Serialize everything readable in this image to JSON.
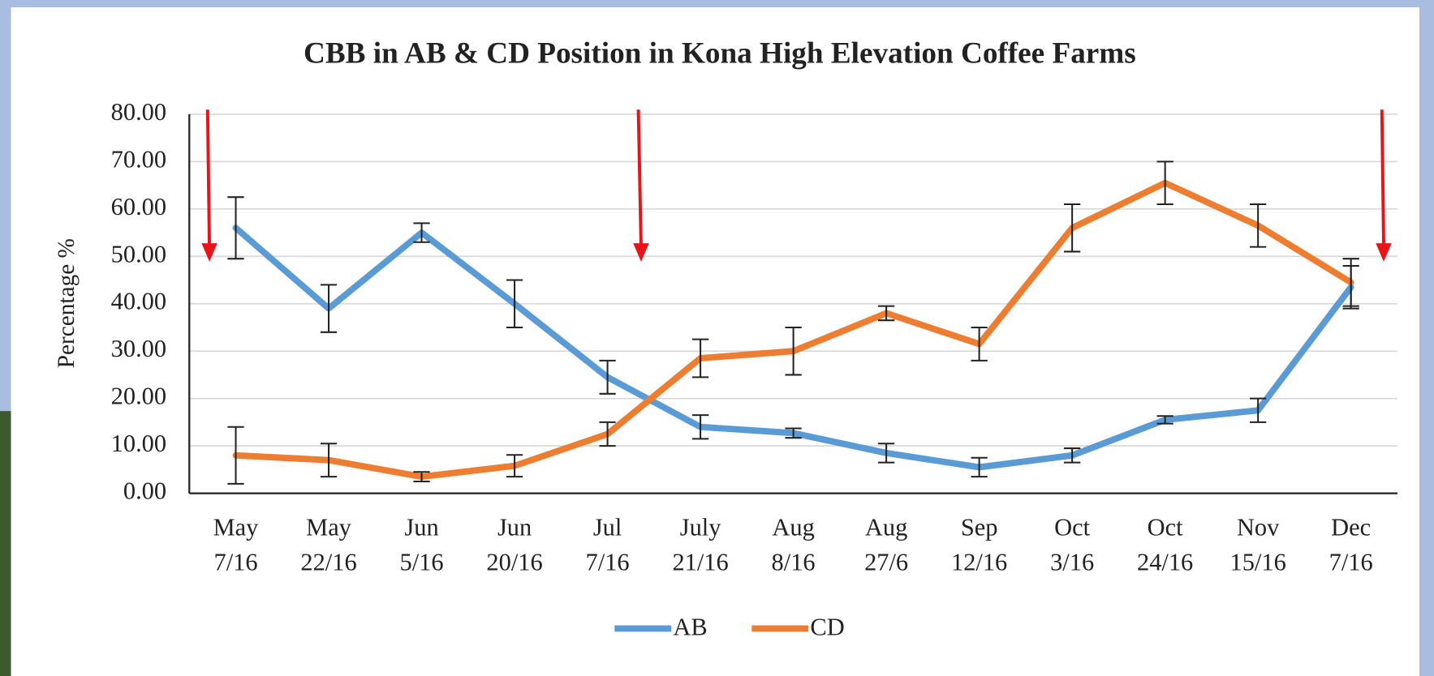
{
  "chart_data": {
    "type": "line",
    "title": "CBB in AB & CD Position in Kona High Elevation Coffee Farms",
    "ylabel": "Percentage %",
    "categories": [
      [
        "May",
        "7/16"
      ],
      [
        "May",
        "22/16"
      ],
      [
        "Jun",
        "5/16"
      ],
      [
        "Jun",
        "20/16"
      ],
      [
        "Jul",
        "7/16"
      ],
      [
        "July",
        "21/16"
      ],
      [
        "Aug",
        "8/16"
      ],
      [
        "Aug",
        "27/6"
      ],
      [
        "Sep",
        "12/16"
      ],
      [
        "Oct",
        "3/16"
      ],
      [
        "Oct",
        "24/16"
      ],
      [
        "Nov",
        "15/16"
      ],
      [
        "Dec",
        "7/16"
      ]
    ],
    "series": [
      {
        "name": "AB",
        "color": "#5b9bd5",
        "values": [
          56,
          39,
          55,
          40,
          24.5,
          14,
          12.7,
          8.5,
          5.5,
          8,
          15.5,
          17.5,
          43.5
        ],
        "errors": [
          6.5,
          5,
          2,
          5,
          3.5,
          2.5,
          1,
          2,
          2,
          1.5,
          0.8,
          2.5,
          4.5
        ]
      },
      {
        "name": "CD",
        "color": "#ed7d31",
        "values": [
          8,
          7,
          3.5,
          5.8,
          12.5,
          28.5,
          30,
          38,
          31.5,
          56,
          65.5,
          56.5,
          44.5
        ],
        "errors": [
          6,
          3.5,
          1,
          2.3,
          2.5,
          4,
          5,
          1.5,
          3.5,
          5,
          4.5,
          4.5,
          5
        ]
      }
    ],
    "ylim": [
      0,
      80
    ],
    "yticks": [
      {
        "value": 0,
        "label": "0.00"
      },
      {
        "value": 10,
        "label": "10.00"
      },
      {
        "value": 20,
        "label": "20.00"
      },
      {
        "value": 30,
        "label": "30.00"
      },
      {
        "value": 40,
        "label": "40.00"
      },
      {
        "value": 50,
        "label": "50.00"
      },
      {
        "value": 60,
        "label": "60.00"
      },
      {
        "value": 70,
        "label": "70.00"
      },
      {
        "value": 80,
        "label": "80.00"
      }
    ],
    "grid": true,
    "legend": "bottom"
  }
}
